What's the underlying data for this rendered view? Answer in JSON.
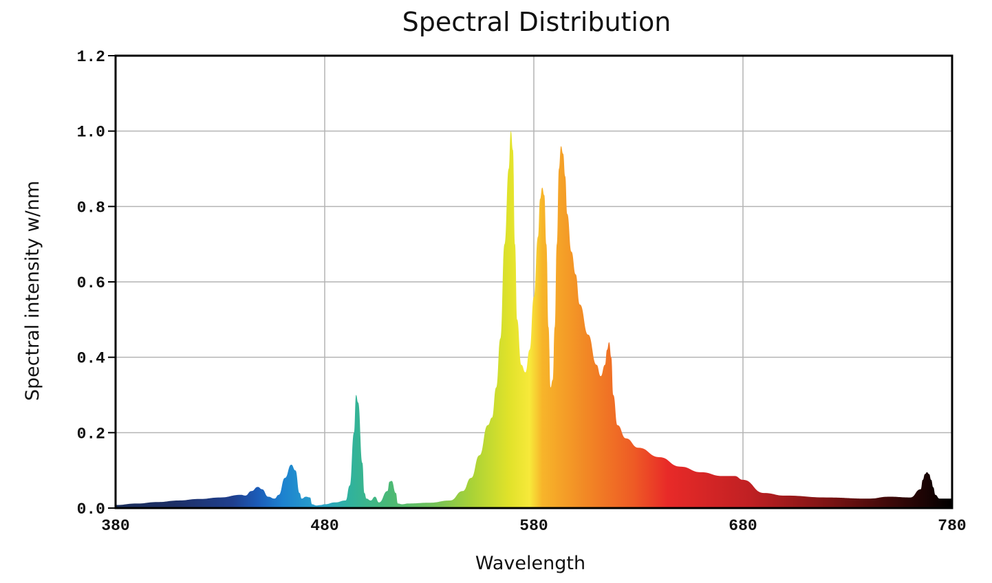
{
  "chart_data": {
    "type": "area",
    "title": "Spectral Distribution",
    "xlabel": "Wavelength",
    "ylabel": "Spectral intensity w/nm",
    "xlim": [
      380,
      780
    ],
    "ylim": [
      0,
      1.2
    ],
    "x_ticks": [
      "380",
      "480",
      "580",
      "680",
      "780"
    ],
    "y_ticks": [
      "0.0",
      "0.2",
      "0.4",
      "0.6",
      "0.8",
      "1.0",
      "1.2"
    ],
    "grid": true,
    "fill": "wavelength-colored gradient",
    "series": [
      {
        "x": [
          380,
          390,
          400,
          410,
          420,
          430,
          440,
          442,
          445,
          448,
          450,
          453,
          456,
          458,
          461,
          464,
          466,
          468,
          469,
          471,
          473,
          474,
          476,
          478,
          480,
          485,
          490,
          492,
          494,
          495,
          496,
          498,
          499,
          500,
          502,
          504,
          506,
          510,
          511,
          512,
          514,
          515,
          517,
          520,
          530,
          540,
          546,
          550,
          554,
          558,
          560,
          562,
          564,
          566,
          568,
          569,
          570,
          571,
          572,
          574,
          576,
          578,
          580,
          582,
          583,
          584,
          585,
          586,
          587,
          588,
          589,
          590,
          591,
          592,
          593,
          594,
          595,
          596,
          598,
          600,
          602,
          606,
          610,
          612,
          614,
          615,
          616,
          617,
          618,
          620,
          624,
          630,
          640,
          650,
          660,
          670,
          676,
          680,
          690,
          700,
          720,
          740,
          750,
          760,
          765,
          766,
          767,
          768,
          769,
          770,
          771,
          772,
          774,
          776,
          780
        ],
        "y": [
          0.008,
          0.012,
          0.016,
          0.02,
          0.024,
          0.028,
          0.035,
          0.033,
          0.045,
          0.056,
          0.05,
          0.03,
          0.025,
          0.035,
          0.08,
          0.115,
          0.1,
          0.04,
          0.025,
          0.03,
          0.028,
          0.01,
          0.007,
          0.008,
          0.01,
          0.015,
          0.02,
          0.06,
          0.2,
          0.3,
          0.28,
          0.12,
          0.04,
          0.025,
          0.02,
          0.03,
          0.015,
          0.045,
          0.07,
          0.072,
          0.04,
          0.012,
          0.01,
          0.012,
          0.014,
          0.02,
          0.045,
          0.08,
          0.14,
          0.22,
          0.24,
          0.32,
          0.45,
          0.7,
          0.9,
          1.0,
          0.95,
          0.7,
          0.5,
          0.38,
          0.36,
          0.42,
          0.56,
          0.72,
          0.82,
          0.85,
          0.83,
          0.7,
          0.48,
          0.32,
          0.34,
          0.48,
          0.7,
          0.9,
          0.96,
          0.94,
          0.88,
          0.78,
          0.68,
          0.62,
          0.54,
          0.46,
          0.38,
          0.35,
          0.38,
          0.42,
          0.44,
          0.4,
          0.3,
          0.22,
          0.185,
          0.16,
          0.135,
          0.11,
          0.095,
          0.085,
          0.085,
          0.075,
          0.04,
          0.033,
          0.028,
          0.025,
          0.03,
          0.028,
          0.05,
          0.075,
          0.09,
          0.095,
          0.09,
          0.075,
          0.055,
          0.035,
          0.025,
          0.025,
          0.025
        ]
      }
    ]
  }
}
